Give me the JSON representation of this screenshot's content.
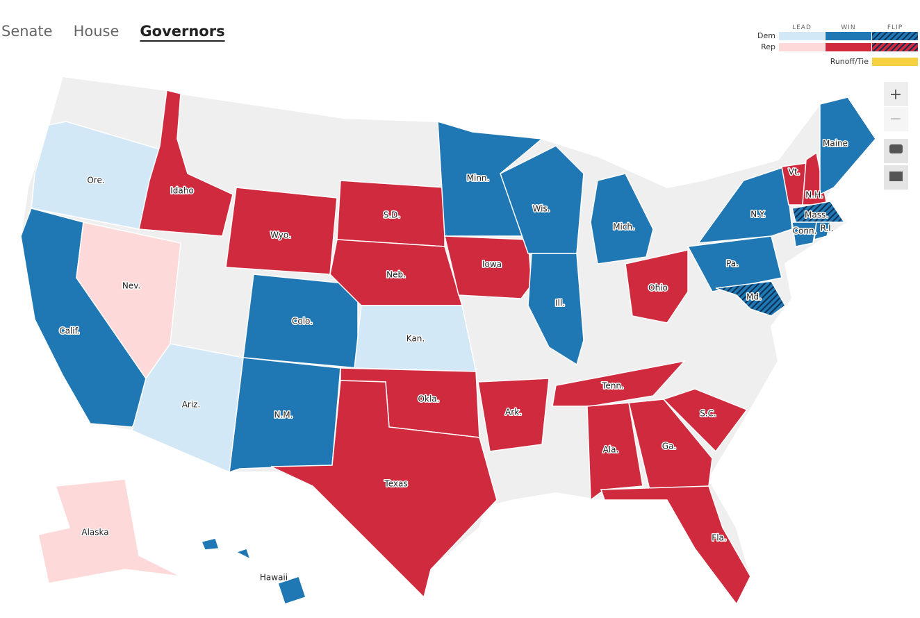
{
  "tabs": [
    {
      "label": "Senate"
    },
    {
      "label": "House"
    },
    {
      "label": "Governors",
      "active": true
    }
  ],
  "legend": {
    "columns": [
      "LEAD",
      "WIN",
      "FLIP"
    ],
    "rows": [
      {
        "label": "Dem",
        "lead": "#d3e8f6",
        "win": "#1f78b4",
        "flip": "#1f78b4"
      },
      {
        "label": "Rep",
        "lead": "#fdd9da",
        "win": "#d02a3e",
        "flip": "#d02a3e"
      }
    ],
    "runoff": {
      "label": "Runoff/Tie",
      "color": "#f6d13f"
    }
  },
  "controls": [
    "+",
    "−"
  ],
  "states": [
    {
      "label": "Ore.",
      "party": "Dem",
      "status": "lead"
    },
    {
      "label": "Idaho",
      "party": "Rep",
      "status": "win"
    },
    {
      "label": "Calif.",
      "party": "Dem",
      "status": "win"
    },
    {
      "label": "Nev.",
      "party": "Rep",
      "status": "lead"
    },
    {
      "label": "Ariz.",
      "party": "Dem",
      "status": "lead"
    },
    {
      "label": "Wyo.",
      "party": "Rep",
      "status": "win"
    },
    {
      "label": "Colo.",
      "party": "Dem",
      "status": "win"
    },
    {
      "label": "N.M.",
      "party": "Dem",
      "status": "win"
    },
    {
      "label": "S.D.",
      "party": "Rep",
      "status": "win"
    },
    {
      "label": "Neb.",
      "party": "Rep",
      "status": "win"
    },
    {
      "label": "Kan.",
      "party": "Dem",
      "status": "lead"
    },
    {
      "label": "Okla.",
      "party": "Rep",
      "status": "win"
    },
    {
      "label": "Texas",
      "party": "Rep",
      "status": "win"
    },
    {
      "label": "Minn.",
      "party": "Dem",
      "status": "win"
    },
    {
      "label": "Iowa",
      "party": "Rep",
      "status": "win"
    },
    {
      "label": "Ark.",
      "party": "Rep",
      "status": "win"
    },
    {
      "label": "Wis.",
      "party": "Dem",
      "status": "win"
    },
    {
      "label": "Ill.",
      "party": "Dem",
      "status": "win"
    },
    {
      "label": "Mich.",
      "party": "Dem",
      "status": "win"
    },
    {
      "label": "Ohio",
      "party": "Rep",
      "status": "win"
    },
    {
      "label": "Tenn.",
      "party": "Rep",
      "status": "win"
    },
    {
      "label": "Ala.",
      "party": "Rep",
      "status": "win"
    },
    {
      "label": "Ga.",
      "party": "Rep",
      "status": "win"
    },
    {
      "label": "S.C.",
      "party": "Rep",
      "status": "win"
    },
    {
      "label": "Fla.",
      "party": "Rep",
      "status": "win"
    },
    {
      "label": "Pa.",
      "party": "Dem",
      "status": "win"
    },
    {
      "label": "N.Y.",
      "party": "Dem",
      "status": "win"
    },
    {
      "label": "Vt.",
      "party": "Rep",
      "status": "win"
    },
    {
      "label": "N.H.",
      "party": "Rep",
      "status": "win"
    },
    {
      "label": "Maine",
      "party": "Dem",
      "status": "win"
    },
    {
      "label": "Mass.",
      "party": "Dem",
      "status": "flip"
    },
    {
      "label": "Conn.",
      "party": "Dem",
      "status": "win"
    },
    {
      "label": "R.I.",
      "party": "Dem",
      "status": "win"
    },
    {
      "label": "Md.",
      "party": "Dem",
      "status": "flip"
    },
    {
      "label": "Alaska",
      "party": "Rep",
      "status": "lead"
    },
    {
      "label": "Hawaii",
      "party": "Dem",
      "status": "win"
    }
  ]
}
